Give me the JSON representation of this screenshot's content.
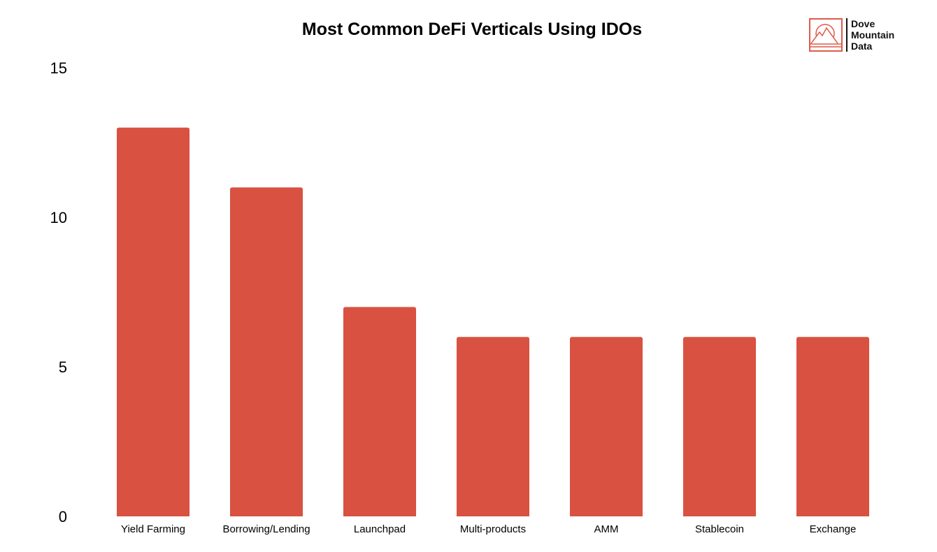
{
  "chart_data": {
    "type": "bar",
    "title": "Most Common DeFi Verticals Using IDOs",
    "xlabel": "",
    "ylabel": "",
    "categories": [
      "Yield Farming",
      "Borrowing/Lending",
      "Launchpad",
      "Multi-products",
      "AMM",
      "Stablecoin",
      "Exchange"
    ],
    "values": [
      13,
      11,
      7,
      6,
      6,
      6,
      6
    ],
    "ylim": [
      0,
      15
    ],
    "yticks": [
      "0",
      "5",
      "10",
      "15"
    ],
    "grid": false,
    "bar_color": "#d95140"
  },
  "logo": {
    "lines": [
      "Dove",
      "Mountain",
      "Data"
    ],
    "color": "#e05a4a"
  }
}
